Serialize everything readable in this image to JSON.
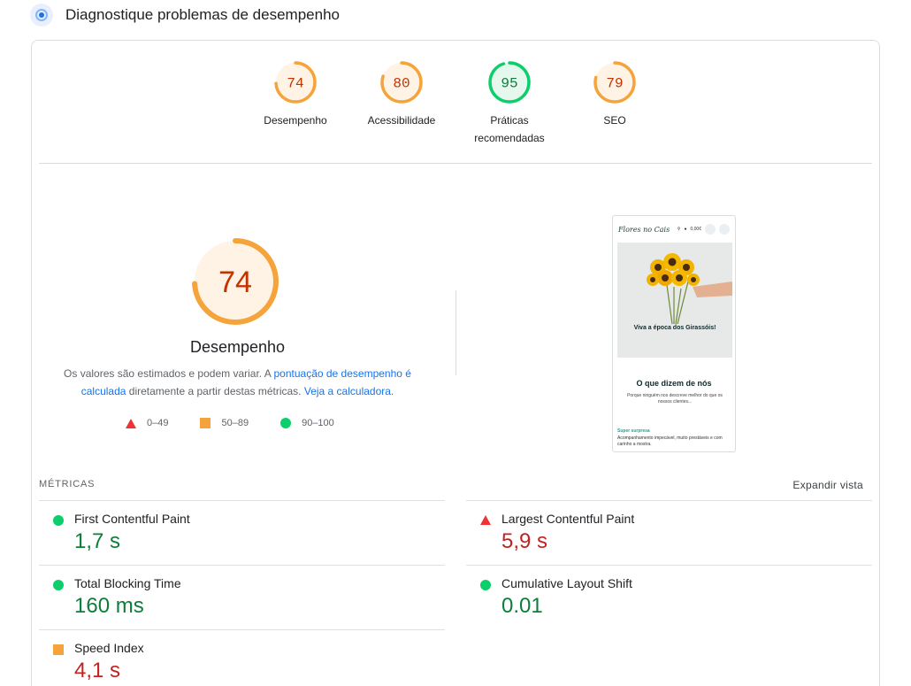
{
  "header": {
    "title": "Diagnostique problemas de desempenho",
    "icon": "lighthouse-icon"
  },
  "categories": [
    {
      "score": "74",
      "label": "Desempenho",
      "value": 74,
      "color": "#f5a33b",
      "text_color": "#c33300",
      "bg": "#fff3e6"
    },
    {
      "score": "80",
      "label": "Acessibilidade",
      "value": 80,
      "color": "#f5a33b",
      "text_color": "#c33300",
      "bg": "#fff3e6"
    },
    {
      "score": "95",
      "label": "Práticas recomendadas",
      "value": 95,
      "color": "#0cce6b",
      "text_color": "#0d7d3b",
      "bg": "#e6f8ee"
    },
    {
      "score": "79",
      "label": "SEO",
      "value": 79,
      "color": "#f5a33b",
      "text_color": "#c33300",
      "bg": "#fff3e6"
    }
  ],
  "performance": {
    "score": "74",
    "value": 74,
    "title": "Desempenho",
    "note_prefix": "Os valores são estimados e podem variar. A ",
    "note_link1": "pontuação de desempenho é calculada",
    "note_middle": " diretamente a partir destas métricas. ",
    "note_link2": "Veja a calculadora."
  },
  "legend": [
    {
      "shape": "triangle",
      "range": "0–49",
      "color": "#e33"
    },
    {
      "shape": "square",
      "range": "50–89",
      "color": "#f5a33b"
    },
    {
      "shape": "circle",
      "range": "90–100",
      "color": "#0cce6b"
    }
  ],
  "screenshot": {
    "logo": "Flores no Cais",
    "cart_value": "0,00€",
    "hero_text": "Viva a época dos Girassóis!",
    "section_title": "O que dizem de nós",
    "section_sub": "Porque ninguém nos descreve melhor do que os nossos clientes...",
    "review_title": "Super surpresa",
    "review_text": "Acompanhamento impecável, muito prestáveis e com carinho a mostra."
  },
  "metrics": {
    "heading": "MÉTRICAS",
    "expand_label": "Expandir vista",
    "items": [
      {
        "name": "First Contentful Paint",
        "value": "1,7 s",
        "status": "good"
      },
      {
        "name": "Largest Contentful Paint",
        "value": "5,9 s",
        "status": "poor"
      },
      {
        "name": "Total Blocking Time",
        "value": "160 ms",
        "status": "good"
      },
      {
        "name": "Cumulative Layout Shift",
        "value": "0.01",
        "status": "good"
      },
      {
        "name": "Speed Index",
        "value": "4,1 s",
        "status": "average"
      }
    ]
  }
}
